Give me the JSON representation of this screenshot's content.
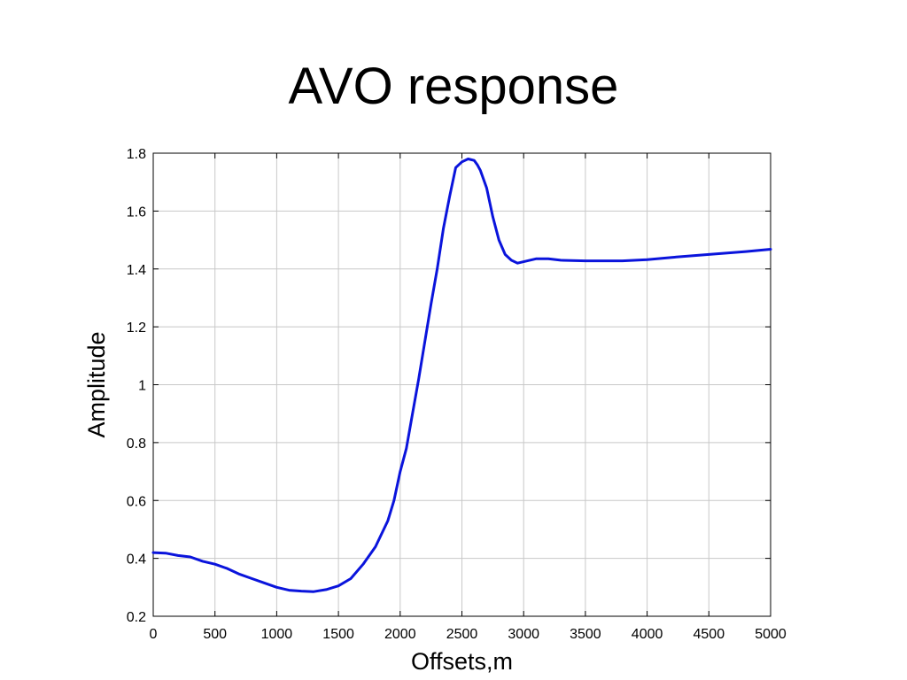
{
  "chart_data": {
    "type": "line",
    "title": "AVO response",
    "xlabel": "Offsets,m",
    "ylabel": "Amplitude",
    "xlim": [
      0,
      5000
    ],
    "ylim": [
      0.2,
      1.8
    ],
    "x_ticks": [
      0,
      500,
      1000,
      1500,
      2000,
      2500,
      3000,
      3500,
      4000,
      4500,
      5000
    ],
    "x_tick_labels": [
      "0",
      "500",
      "1000",
      "1500",
      "2000",
      "2500",
      "3000",
      "3500",
      "4000",
      "4500",
      "5000"
    ],
    "y_ticks": [
      0.2,
      0.4,
      0.6,
      0.8,
      1.0,
      1.2,
      1.4,
      1.6,
      1.8
    ],
    "y_tick_labels": [
      "0.2",
      "0.4",
      "0.6",
      "0.8",
      "1",
      "1.2",
      "1.4",
      "1.6",
      "1.8"
    ],
    "grid": true,
    "series": [
      {
        "color": "#0a14dc",
        "x": [
          0,
          100,
          200,
          300,
          400,
          500,
          600,
          700,
          800,
          900,
          1000,
          1100,
          1200,
          1300,
          1400,
          1500,
          1600,
          1700,
          1800,
          1900,
          1950,
          2000,
          2050,
          2100,
          2150,
          2200,
          2250,
          2300,
          2350,
          2400,
          2450,
          2500,
          2550,
          2600,
          2625,
          2650,
          2700,
          2750,
          2800,
          2850,
          2900,
          2950,
          3000,
          3100,
          3200,
          3300,
          3500,
          3800,
          4000,
          4200,
          4500,
          4800,
          5000
        ],
        "y": [
          0.42,
          0.418,
          0.41,
          0.405,
          0.39,
          0.38,
          0.365,
          0.345,
          0.33,
          0.315,
          0.3,
          0.29,
          0.287,
          0.285,
          0.292,
          0.305,
          0.33,
          0.38,
          0.44,
          0.53,
          0.6,
          0.7,
          0.78,
          0.9,
          1.02,
          1.15,
          1.28,
          1.4,
          1.54,
          1.65,
          1.75,
          1.77,
          1.78,
          1.775,
          1.76,
          1.74,
          1.68,
          1.58,
          1.5,
          1.45,
          1.43,
          1.42,
          1.425,
          1.435,
          1.435,
          1.43,
          1.428,
          1.428,
          1.432,
          1.44,
          1.45,
          1.46,
          1.468
        ]
      }
    ]
  }
}
